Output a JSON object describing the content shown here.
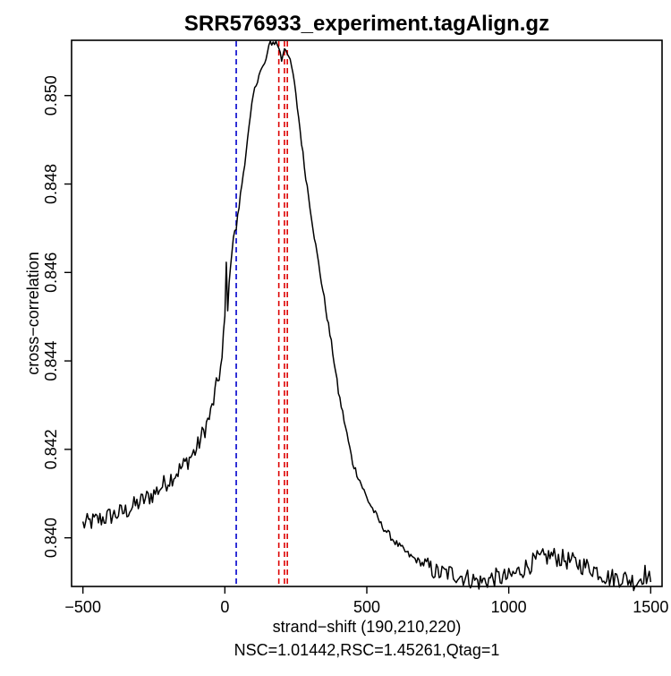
{
  "chart_data": {
    "type": "line",
    "title": "SRR576933_experiment.tagAlign.gz",
    "xlabel": "strand−shift (190,210,220)",
    "subtitle": "NSC=1.01442,RSC=1.45261,Qtag=1",
    "ylabel": "cross−correlation",
    "xlim": [
      -540,
      1540
    ],
    "ylim": [
      0.8389,
      0.85125
    ],
    "x_ticks": [
      -500,
      0,
      500,
      1000,
      1500
    ],
    "x_tick_labels": [
      "−500",
      "0",
      "500",
      "1000",
      "1500"
    ],
    "y_ticks": [
      0.84,
      0.842,
      0.844,
      0.846,
      0.848,
      0.85
    ],
    "y_tick_labels": [
      "0.840",
      "0.842",
      "0.844",
      "0.846",
      "0.848",
      "0.850"
    ],
    "vlines": [
      {
        "x": 40,
        "color": "#0000cc",
        "style": "dashed"
      },
      {
        "x": 190,
        "color": "#dd0000",
        "style": "dashed"
      },
      {
        "x": 210,
        "color": "#dd0000",
        "style": "dashed"
      },
      {
        "x": 220,
        "color": "#dd0000",
        "style": "dashed"
      }
    ],
    "series": [
      {
        "name": "cross-correlation",
        "color": "#000000",
        "x": [
          -500,
          -450,
          -400,
          -350,
          -300,
          -250,
          -200,
          -150,
          -100,
          -50,
          -10,
          0,
          5,
          10,
          20,
          30,
          40,
          50,
          60,
          80,
          100,
          120,
          140,
          160,
          180,
          190,
          200,
          210,
          220,
          240,
          260,
          280,
          300,
          320,
          340,
          360,
          380,
          400,
          450,
          500,
          550,
          600,
          650,
          700,
          750,
          800,
          850,
          900,
          950,
          1000,
          1100,
          1150,
          1200,
          1250,
          1300,
          1350,
          1400,
          1450,
          1480,
          1500
        ],
        "values": [
          0.8403,
          0.8404,
          0.8405,
          0.8406,
          0.8408,
          0.841,
          0.8413,
          0.8416,
          0.842,
          0.8428,
          0.844,
          0.845,
          0.8462,
          0.8452,
          0.8462,
          0.8468,
          0.847,
          0.8475,
          0.848,
          0.849,
          0.85,
          0.8505,
          0.8507,
          0.8512,
          0.8512,
          0.8511,
          0.8508,
          0.8511,
          0.851,
          0.8505,
          0.8495,
          0.8484,
          0.8475,
          0.8466,
          0.8458,
          0.845,
          0.8442,
          0.8433,
          0.8417,
          0.8409,
          0.8403,
          0.8399,
          0.8396,
          0.8394,
          0.8392,
          0.8392,
          0.8391,
          0.839,
          0.8391,
          0.8391,
          0.8395,
          0.8396,
          0.8395,
          0.8394,
          0.8393,
          0.8391,
          0.8391,
          0.839,
          0.8392,
          0.839
        ]
      }
    ]
  }
}
